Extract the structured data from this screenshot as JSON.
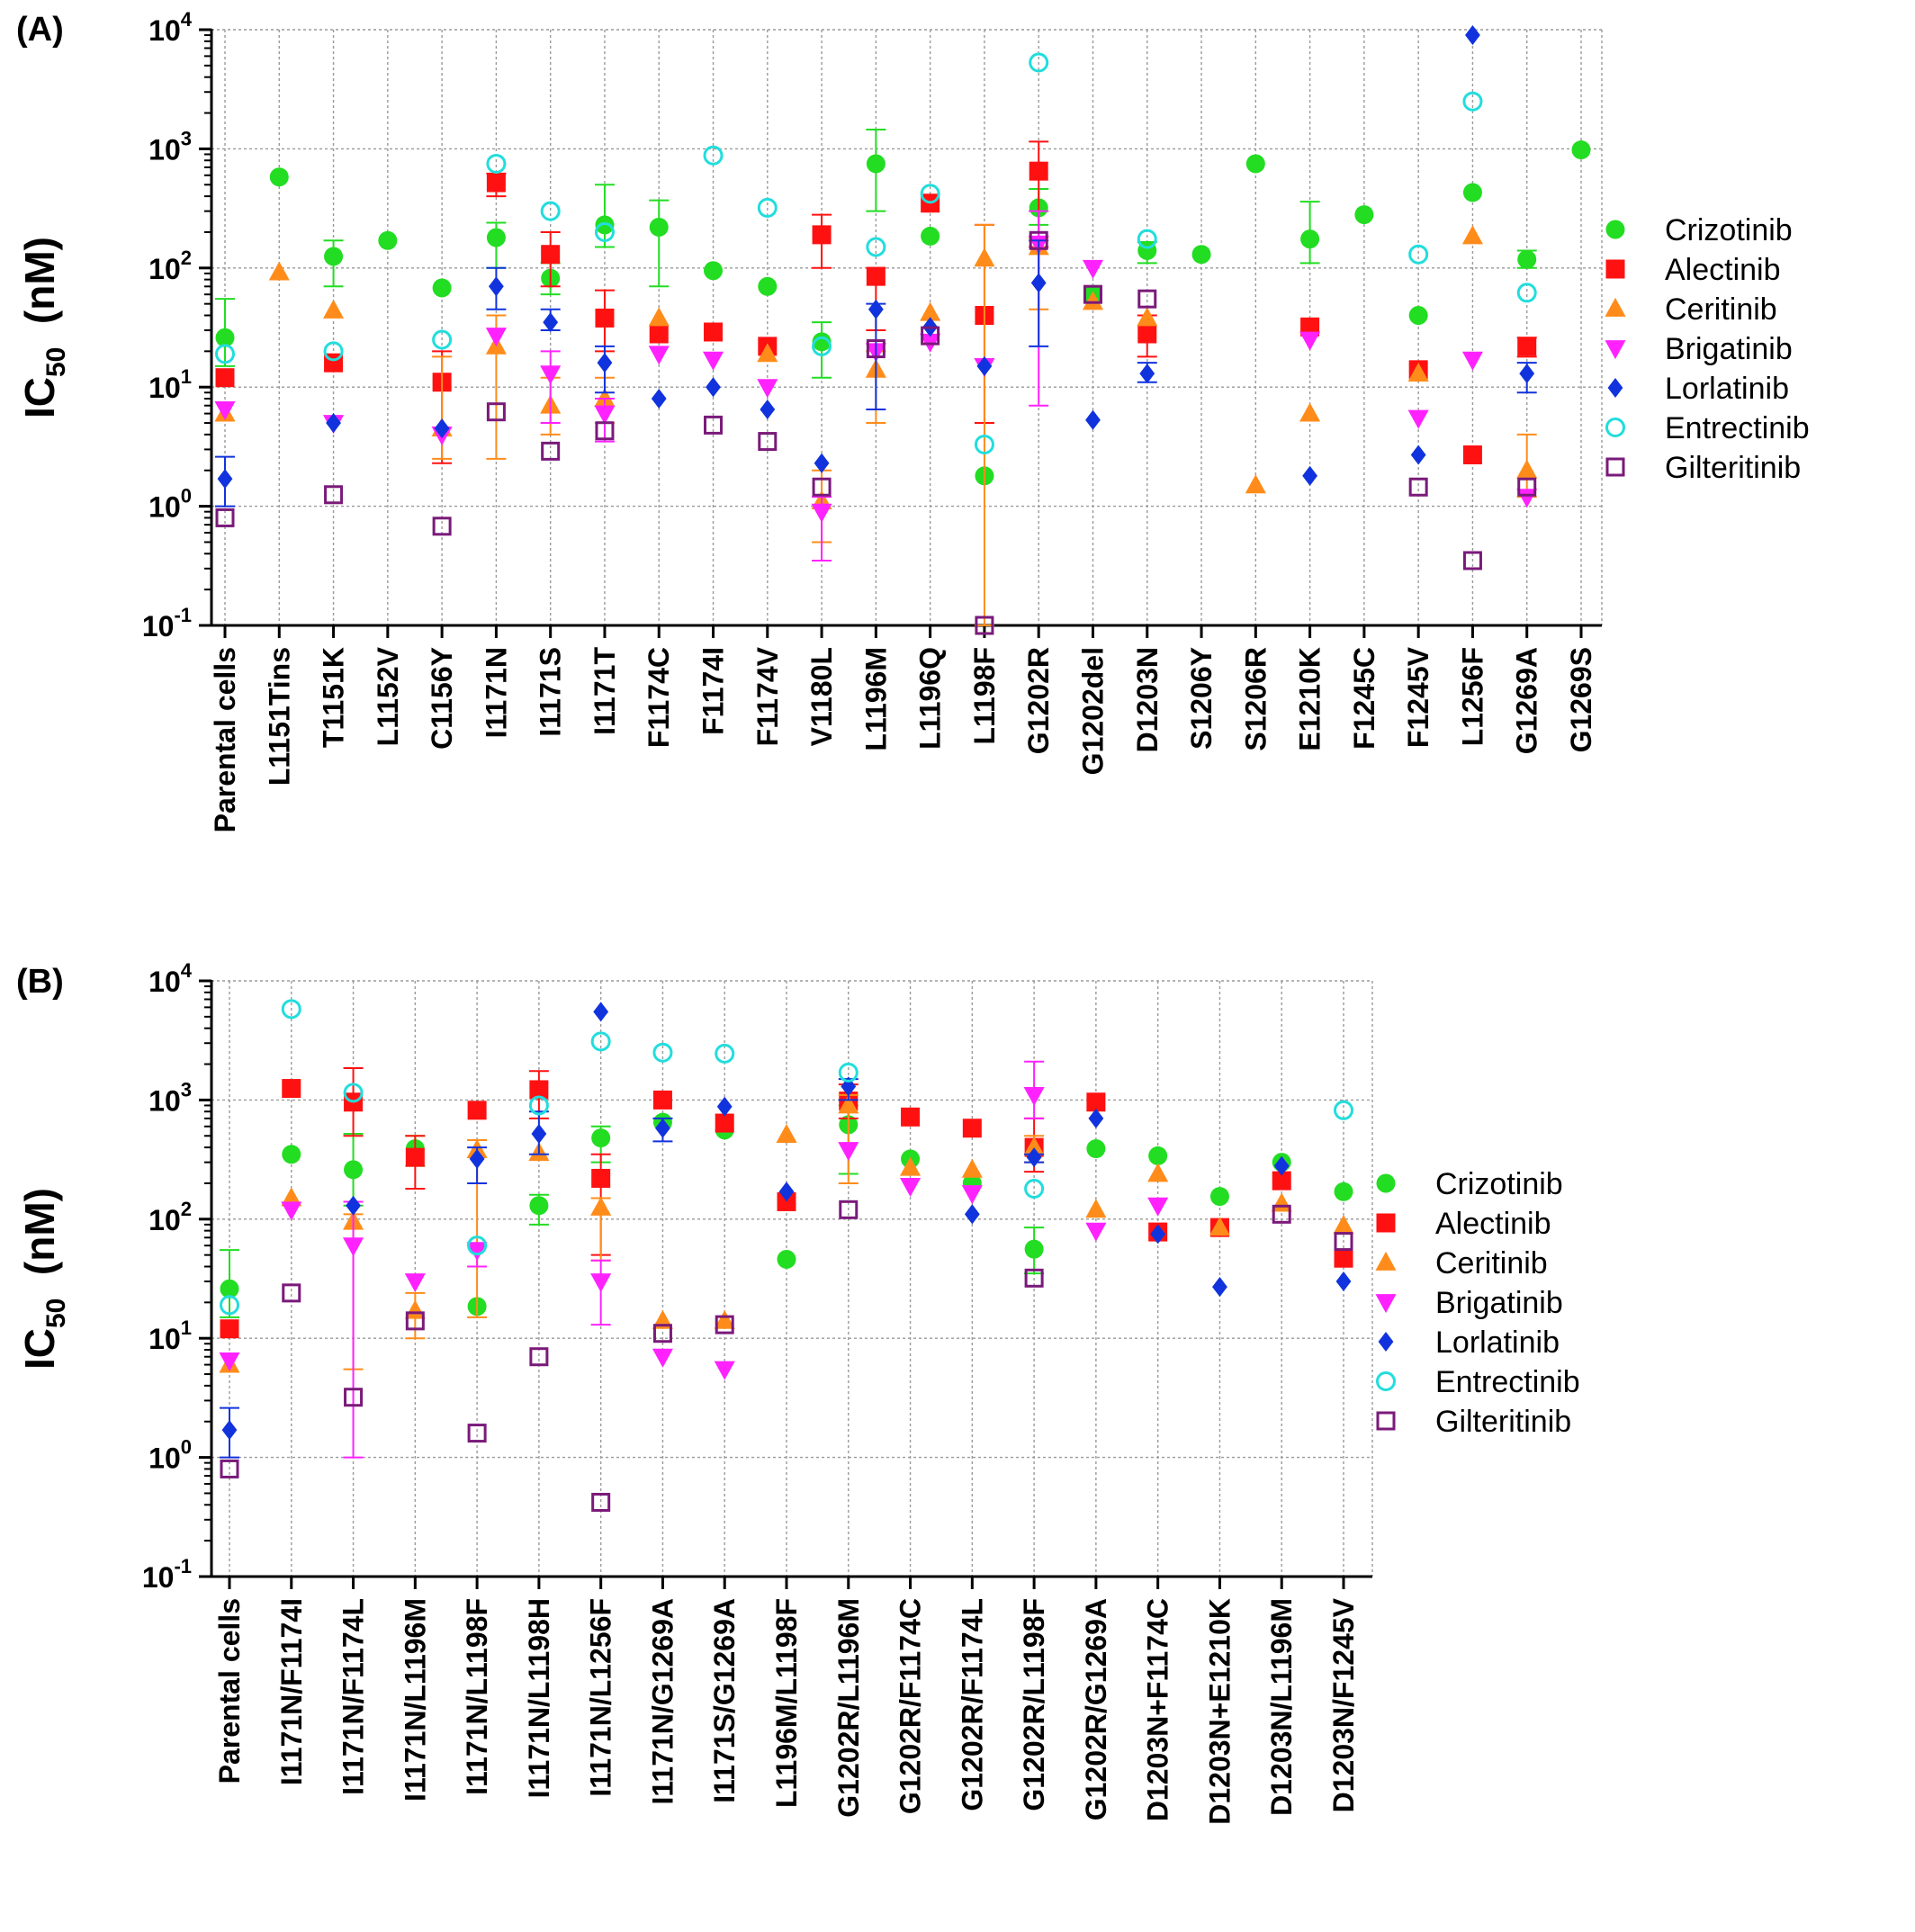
{
  "legend": [
    {
      "name": "Crizotinib",
      "color": "#22dd22",
      "marker": "circle"
    },
    {
      "name": "Alectinib",
      "color": "#ff1111",
      "marker": "square"
    },
    {
      "name": "Ceritinib",
      "color": "#ff8c1a",
      "marker": "triangle-up"
    },
    {
      "name": "Brigatinib",
      "color": "#ff22ff",
      "marker": "triangle-down"
    },
    {
      "name": "Lorlatinib",
      "color": "#1133dd",
      "marker": "diamond"
    },
    {
      "name": "Entrectinib",
      "color": "#22dddd",
      "marker": "open-circle"
    },
    {
      "name": "Gilteritinib",
      "color": "#7a1a7a",
      "marker": "open-square"
    }
  ],
  "chart_data": [
    {
      "panel_label": "(A)",
      "type": "scatter",
      "ylabel": "IC50 (nM)",
      "yscale": "log",
      "ylim": [
        0.1,
        10000
      ],
      "yticks": [
        {
          "value": 0.1,
          "base": "10",
          "exp": "-1"
        },
        {
          "value": 1,
          "base": "10",
          "exp": "0"
        },
        {
          "value": 10,
          "base": "10",
          "exp": "1"
        },
        {
          "value": 100,
          "base": "10",
          "exp": "2"
        },
        {
          "value": 1000,
          "base": "10",
          "exp": "3"
        },
        {
          "value": 10000,
          "base": "10",
          "exp": "4"
        }
      ],
      "grid": true,
      "legend_position": "right",
      "categories": [
        "Parental cells",
        "L1151Tins",
        "T1151K",
        "L1152V",
        "C1156Y",
        "I1171N",
        "I1171S",
        "I1171T",
        "F1174C",
        "F1174I",
        "F1174V",
        "V1180L",
        "L1196M",
        "L1196Q",
        "L1198F",
        "G1202R",
        "G1202del",
        "D1203N",
        "S1206Y",
        "S1206R",
        "E1210K",
        "F1245C",
        "F1245V",
        "L1256F",
        "G1269A",
        "G1269S"
      ],
      "series": [
        {
          "name": "Crizotinib",
          "values": [
            26,
            580,
            125,
            170,
            68,
            180,
            82,
            230,
            220,
            95,
            70,
            24,
            750,
            185,
            1.8,
            320,
            60,
            140,
            130,
            750,
            175,
            280,
            40,
            430,
            118,
            980
          ],
          "errors": [
            [
              15,
              55
            ],
            null,
            [
              70,
              170
            ],
            null,
            null,
            [
              100,
              240
            ],
            [
              60,
              110
            ],
            [
              150,
              500
            ],
            [
              70,
              370
            ],
            null,
            null,
            [
              12,
              35
            ],
            [
              300,
              1450
            ],
            null,
            null,
            [
              230,
              460
            ],
            null,
            [
              110,
              165
            ],
            null,
            null,
            [
              110,
              360
            ],
            null,
            null,
            null,
            [
              100,
              140
            ],
            null
          ]
        },
        {
          "name": "Alectinib",
          "values": [
            12,
            null,
            16,
            null,
            11,
            520,
            130,
            38,
            28,
            29,
            22,
            190,
            85,
            350,
            40,
            650,
            null,
            28,
            null,
            null,
            32,
            null,
            14,
            2.7,
            22,
            null
          ],
          "errors": [
            null,
            null,
            null,
            null,
            [
              2.3,
              20
            ],
            [
              400,
              620
            ],
            [
              70,
              200
            ],
            [
              20,
              65
            ],
            null,
            null,
            null,
            [
              100,
              280
            ],
            [
              30,
              100
            ],
            null,
            [
              5,
              230
            ],
            [
              150,
              1150
            ],
            null,
            [
              18,
              40
            ],
            null,
            null,
            null,
            null,
            null,
            null,
            [
              18,
              26
            ],
            null
          ]
        },
        {
          "name": "Ceritinib",
          "values": [
            6,
            92,
            44,
            null,
            4.5,
            22,
            7,
            8,
            38,
            null,
            19,
            1.1,
            14,
            42,
            120,
            150,
            52,
            38,
            null,
            1.5,
            6,
            null,
            13,
            185,
            2,
            null
          ],
          "errors": [
            null,
            null,
            null,
            null,
            [
              2.5,
              18
            ],
            [
              2.5,
              40
            ],
            [
              4,
              12
            ],
            [
              5,
              12
            ],
            null,
            null,
            null,
            [
              0.5,
              2
            ],
            [
              5,
              20
            ],
            null,
            [
              0.1,
              230
            ],
            [
              45,
              180
            ],
            null,
            null,
            null,
            null,
            null,
            null,
            null,
            null,
            [
              1.2,
              4
            ],
            null
          ]
        },
        {
          "name": "Brigatinib",
          "values": [
            6.5,
            null,
            5,
            null,
            4,
            27,
            13,
            6,
            19,
            17,
            10,
            0.9,
            20,
            24,
            15,
            160,
            100,
            null,
            null,
            null,
            25,
            null,
            5.5,
            17,
            1.2,
            null
          ],
          "errors": [
            null,
            null,
            null,
            null,
            null,
            null,
            [
              5,
              20
            ],
            [
              3.5,
              8
            ],
            null,
            null,
            null,
            [
              0.35,
              1.2
            ],
            null,
            null,
            null,
            [
              7,
              300
            ],
            null,
            null,
            null,
            null,
            null,
            null,
            null,
            null,
            null,
            null
          ]
        },
        {
          "name": "Lorlatinib",
          "values": [
            1.7,
            null,
            5,
            null,
            4.5,
            70,
            35,
            16,
            8,
            10,
            6.5,
            2.3,
            45,
            32,
            15,
            75,
            5.3,
            13,
            null,
            null,
            1.8,
            null,
            2.7,
            9000,
            13,
            null
          ],
          "errors": [
            [
              1,
              2.6
            ],
            null,
            null,
            null,
            null,
            [
              45,
              100
            ],
            [
              30,
              45
            ],
            [
              9,
              22
            ],
            null,
            null,
            null,
            null,
            [
              6.5,
              50
            ],
            null,
            null,
            [
              22,
              170
            ],
            null,
            [
              11,
              16
            ],
            null,
            null,
            null,
            null,
            null,
            null,
            [
              9,
              16
            ],
            null
          ]
        },
        {
          "name": "Entrectinib",
          "values": [
            19,
            null,
            20,
            null,
            25,
            750,
            300,
            200,
            null,
            880,
            320,
            22,
            150,
            420,
            3.3,
            5300,
            null,
            175,
            null,
            null,
            null,
            null,
            130,
            2500,
            62,
            null
          ],
          "errors": [
            null,
            null,
            null,
            null,
            null,
            null,
            null,
            null,
            null,
            null,
            null,
            null,
            null,
            null,
            null,
            null,
            null,
            null,
            null,
            null,
            null,
            null,
            null,
            null,
            null,
            null
          ]
        },
        {
          "name": "Gilteritinib",
          "values": [
            0.8,
            null,
            1.25,
            null,
            0.68,
            6.2,
            2.9,
            4.3,
            null,
            4.8,
            3.5,
            1.45,
            21,
            27,
            0.1,
            170,
            60,
            55,
            null,
            null,
            null,
            null,
            1.45,
            0.35,
            1.45,
            null
          ],
          "errors": [
            null,
            null,
            null,
            null,
            null,
            null,
            null,
            null,
            null,
            null,
            null,
            null,
            null,
            null,
            null,
            null,
            null,
            null,
            null,
            null,
            null,
            null,
            null,
            null,
            null,
            null
          ]
        }
      ]
    },
    {
      "panel_label": "(B)",
      "type": "scatter",
      "ylabel": "IC50 (nM)",
      "yscale": "log",
      "ylim": [
        0.1,
        10000
      ],
      "yticks": [
        {
          "value": 0.1,
          "base": "10",
          "exp": "-1"
        },
        {
          "value": 1,
          "base": "10",
          "exp": "0"
        },
        {
          "value": 10,
          "base": "10",
          "exp": "1"
        },
        {
          "value": 100,
          "base": "10",
          "exp": "2"
        },
        {
          "value": 1000,
          "base": "10",
          "exp": "3"
        },
        {
          "value": 10000,
          "base": "10",
          "exp": "4"
        }
      ],
      "grid": true,
      "legend_position": "right",
      "categories": [
        "Parental cells",
        "I1171N/F1174I",
        "I1171N/F1174L",
        "I1171N/L1196M",
        "I1171N/L1198F",
        "I1171N/L1198H",
        "I1171N/L1256F",
        "I1171N/G1269A",
        "I1171S/G1269A",
        "L1196M/L1198F",
        "G1202R/L1196M",
        "G1202R/F1174C",
        "G1202R/F1174L",
        "G1202R/L1198F",
        "G1202R/G1269A",
        "D1203N+F1174C",
        "D1203N+E1210K",
        "D1203N/L1196M",
        "D1203N/F1245V"
      ],
      "series": [
        {
          "name": "Crizotinib",
          "values": [
            26,
            350,
            260,
            390,
            18.5,
            130,
            480,
            650,
            560,
            46,
            620,
            320,
            200,
            56,
            390,
            340,
            155,
            300,
            170
          ],
          "errors": [
            [
              15,
              55
            ],
            null,
            [
              130,
              520
            ],
            [
              280,
              500
            ],
            null,
            [
              90,
              160
            ],
            [
              300,
              600
            ],
            null,
            null,
            null,
            [
              240,
              900
            ],
            null,
            null,
            [
              35,
              85
            ],
            null,
            null,
            null,
            null,
            null
          ]
        },
        {
          "name": "Alectinib",
          "values": [
            12,
            1250,
            960,
            330,
            820,
            1220,
            220,
            1000,
            640,
            140,
            980,
            720,
            580,
            400,
            960,
            78,
            85,
            210,
            47
          ],
          "errors": [
            null,
            null,
            [
              500,
              1850
            ],
            [
              180,
              500
            ],
            null,
            [
              700,
              1750
            ],
            [
              50,
              350
            ],
            null,
            null,
            null,
            [
              700,
              1350
            ],
            null,
            null,
            [
              250,
              700
            ],
            null,
            null,
            null,
            null,
            null
          ]
        },
        {
          "name": "Ceritinib",
          "values": [
            6,
            150,
            95,
            17,
            380,
            360,
            125,
            14,
            14,
            510,
            900,
            270,
            260,
            400,
            120,
            240,
            85,
            135,
            88
          ],
          "errors": [
            null,
            null,
            [
              5.5,
              110
            ],
            [
              10,
              24
            ],
            [
              15,
              460
            ],
            null,
            [
              45,
              150
            ],
            null,
            null,
            null,
            [
              200,
              1100
            ],
            null,
            null,
            [
              300,
              500
            ],
            null,
            null,
            null,
            null,
            null
          ]
        },
        {
          "name": "Brigatinib",
          "values": [
            6.5,
            120,
            60,
            30,
            55,
            null,
            30,
            7,
            5.5,
            null,
            380,
            190,
            165,
            1100,
            80,
            130,
            null,
            null,
            null
          ],
          "errors": [
            null,
            null,
            [
              1,
              140
            ],
            null,
            [
              40,
              60
            ],
            null,
            [
              13,
              45
            ],
            null,
            null,
            null,
            null,
            null,
            null,
            [
              700,
              2100
            ],
            null,
            null,
            null,
            null,
            null
          ]
        },
        {
          "name": "Lorlatinib",
          "values": [
            1.7,
            null,
            130,
            null,
            320,
            520,
            5500,
            580,
            880,
            170,
            1300,
            null,
            110,
            330,
            700,
            75,
            27,
            280,
            30
          ],
          "errors": [
            [
              1,
              2.6
            ],
            null,
            null,
            null,
            [
              200,
              400
            ],
            [
              350,
              800
            ],
            null,
            [
              450,
              700
            ],
            null,
            null,
            [
              1000,
              1500
            ],
            null,
            null,
            [
              300,
              350
            ],
            null,
            null,
            null,
            null,
            null
          ]
        },
        {
          "name": "Entrectinib",
          "values": [
            19,
            5800,
            1150,
            null,
            60,
            900,
            3100,
            2500,
            2450,
            null,
            1700,
            null,
            null,
            180,
            null,
            null,
            null,
            null,
            820
          ],
          "errors": [
            null,
            null,
            null,
            null,
            null,
            null,
            null,
            null,
            null,
            null,
            null,
            null,
            null,
            null,
            null,
            null,
            null,
            null,
            null
          ]
        },
        {
          "name": "Gilteritinib",
          "values": [
            0.8,
            24,
            3.2,
            14,
            1.6,
            7,
            0.42,
            11,
            13,
            null,
            120,
            null,
            null,
            32,
            null,
            null,
            null,
            110,
            65
          ],
          "errors": [
            null,
            null,
            null,
            null,
            null,
            null,
            null,
            null,
            null,
            null,
            null,
            null,
            null,
            null,
            null,
            null,
            null,
            null,
            null
          ]
        }
      ]
    }
  ]
}
